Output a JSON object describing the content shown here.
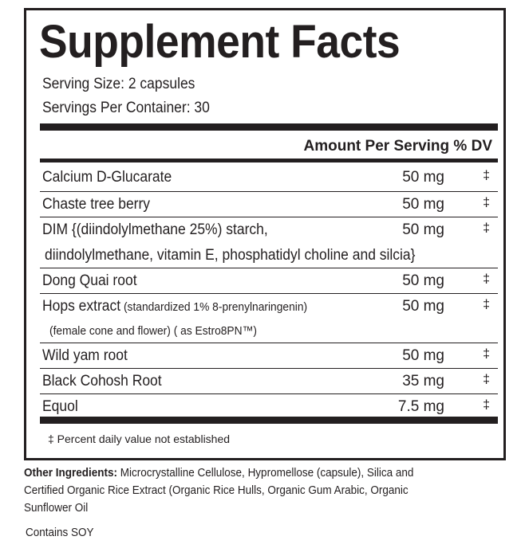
{
  "title": "Supplement Facts",
  "serving_size": "Serving Size: 2 capsules",
  "servings_per_container": "Servings Per Container: 30",
  "header": "Amount Per Serving % DV",
  "rows": [
    {
      "name": "Calcium D-Glucarate",
      "amount": "50 mg",
      "dv": "‡"
    },
    {
      "name": "Chaste tree berry",
      "amount": "50 mg",
      "dv": "‡"
    },
    {
      "name": "DIM {(diindolylmethane 25%) starch,",
      "name2": "diindolylmethane, vitamin E, phosphatidyl choline and silcia}",
      "amount": "50 mg",
      "dv": "‡"
    },
    {
      "name": "Dong Quai root",
      "amount": "50 mg",
      "dv": "‡"
    },
    {
      "name": "Hops extract",
      "name_detail": " (standardized 1% 8-prenylnaringenin)",
      "name2": "(female cone and flower) ( as Estro8PN™)",
      "amount": "50 mg",
      "dv": "‡"
    },
    {
      "name": "Wild yam root",
      "amount": "50 mg",
      "dv": "‡"
    },
    {
      "name": "Black Cohosh Root",
      "amount": "35 mg",
      "dv": "‡"
    },
    {
      "name": "Equol",
      "amount": "7.5 mg",
      "dv": "‡"
    }
  ],
  "footnote": "‡ Percent daily value not established",
  "other_label": "Other Ingredients:",
  "other_text": " Microcrystalline Cellulose, Hypromellose (capsule), Silica and Certified Organic Rice Extract (Organic Rice Hulls, Organic Gum Arabic, Organic Sunflower Oil",
  "contains": "Contains SOY"
}
